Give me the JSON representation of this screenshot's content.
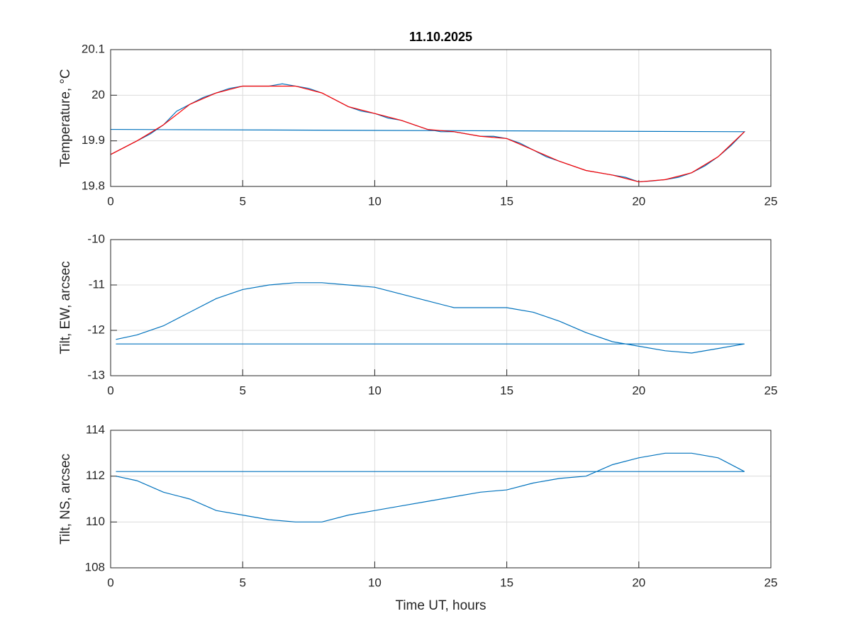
{
  "chart_data": [
    {
      "type": "line",
      "title": "11.10.2025",
      "ylabel": "Temperature, °C",
      "xlim": [
        0,
        25
      ],
      "xticks": [
        0,
        5,
        10,
        15,
        20,
        25
      ],
      "ylim": [
        19.8,
        20.1
      ],
      "yticks": [
        19.8,
        19.9,
        20,
        20.1
      ],
      "grid": true,
      "series": [
        {
          "color": "#0072bd",
          "x": [
            0,
            0.5,
            1,
            1.5,
            2,
            2.5,
            3,
            3.5,
            4,
            4.5,
            5,
            5.5,
            6,
            6.5,
            7,
            7.5,
            8,
            8.5,
            9,
            9.5,
            10,
            10.5,
            11,
            11.5,
            12,
            12.5,
            13,
            13.5,
            14,
            14.5,
            15,
            15.5,
            16,
            16.5,
            17,
            17.5,
            18,
            18.5,
            19,
            19.5,
            20,
            20.5,
            21,
            21.5,
            22,
            22.5,
            23,
            23.5,
            24,
            0
          ],
          "values": [
            19.87,
            19.885,
            19.9,
            19.915,
            19.935,
            19.965,
            19.98,
            19.995,
            20.005,
            20.015,
            20.02,
            20.02,
            20.02,
            20.025,
            20.02,
            20.015,
            20.005,
            19.99,
            19.975,
            19.965,
            19.96,
            19.95,
            19.945,
            19.935,
            19.925,
            19.92,
            19.92,
            19.915,
            19.91,
            19.91,
            19.905,
            19.895,
            19.88,
            19.865,
            19.855,
            19.845,
            19.835,
            19.83,
            19.825,
            19.82,
            19.81,
            19.812,
            19.815,
            19.82,
            19.83,
            19.845,
            19.865,
            19.89,
            19.92,
            19.925
          ]
        },
        {
          "color": "#ff0000",
          "x": [
            0,
            1,
            2,
            3,
            4,
            5,
            6,
            7,
            8,
            9,
            10,
            11,
            12,
            13,
            14,
            15,
            16,
            17,
            18,
            19,
            20,
            21,
            22,
            23,
            24
          ],
          "values": [
            19.87,
            19.9,
            19.935,
            19.98,
            20.005,
            20.02,
            20.02,
            20.02,
            20.005,
            19.975,
            19.96,
            19.945,
            19.925,
            19.92,
            19.91,
            19.905,
            19.88,
            19.855,
            19.835,
            19.825,
            19.81,
            19.815,
            19.83,
            19.865,
            19.92
          ]
        }
      ]
    },
    {
      "type": "line",
      "ylabel": "Tilt, EW, arcsec",
      "xlim": [
        0,
        25
      ],
      "xticks": [
        0,
        5,
        10,
        15,
        20,
        25
      ],
      "ylim": [
        -13,
        -10
      ],
      "yticks": [
        -13,
        -12,
        -11,
        -10
      ],
      "grid": true,
      "series": [
        {
          "color": "#0072bd",
          "x": [
            0.2,
            1,
            2,
            3,
            4,
            5,
            6,
            7,
            8,
            9,
            10,
            11,
            12,
            13,
            14,
            15,
            16,
            17,
            18,
            19,
            20,
            21,
            22,
            23,
            24,
            0.2
          ],
          "values": [
            -12.2,
            -12.1,
            -11.9,
            -11.6,
            -11.3,
            -11.1,
            -11.0,
            -10.95,
            -10.95,
            -11.0,
            -11.05,
            -11.2,
            -11.35,
            -11.5,
            -11.5,
            -11.5,
            -11.6,
            -11.8,
            -12.05,
            -12.25,
            -12.35,
            -12.45,
            -12.5,
            -12.4,
            -12.3,
            -12.3
          ]
        }
      ]
    },
    {
      "type": "line",
      "ylabel": "Tilt, NS, arcsec",
      "xlabel": "Time UT, hours",
      "xlim": [
        0,
        25
      ],
      "xticks": [
        0,
        5,
        10,
        15,
        20,
        25
      ],
      "ylim": [
        108,
        114
      ],
      "yticks": [
        108,
        110,
        112,
        114
      ],
      "grid": true,
      "series": [
        {
          "color": "#0072bd",
          "x": [
            0.2,
            1,
            2,
            3,
            4,
            5,
            6,
            7,
            8,
            9,
            10,
            11,
            12,
            13,
            14,
            15,
            16,
            17,
            18,
            19,
            20,
            21,
            22,
            23,
            24,
            0.2
          ],
          "values": [
            112.0,
            111.8,
            111.3,
            111.0,
            110.5,
            110.3,
            110.1,
            110.0,
            110.0,
            110.3,
            110.5,
            110.7,
            110.9,
            111.1,
            111.3,
            111.4,
            111.7,
            111.9,
            112.0,
            112.5,
            112.8,
            113.0,
            113.0,
            112.8,
            112.2,
            112.2
          ]
        }
      ]
    }
  ]
}
